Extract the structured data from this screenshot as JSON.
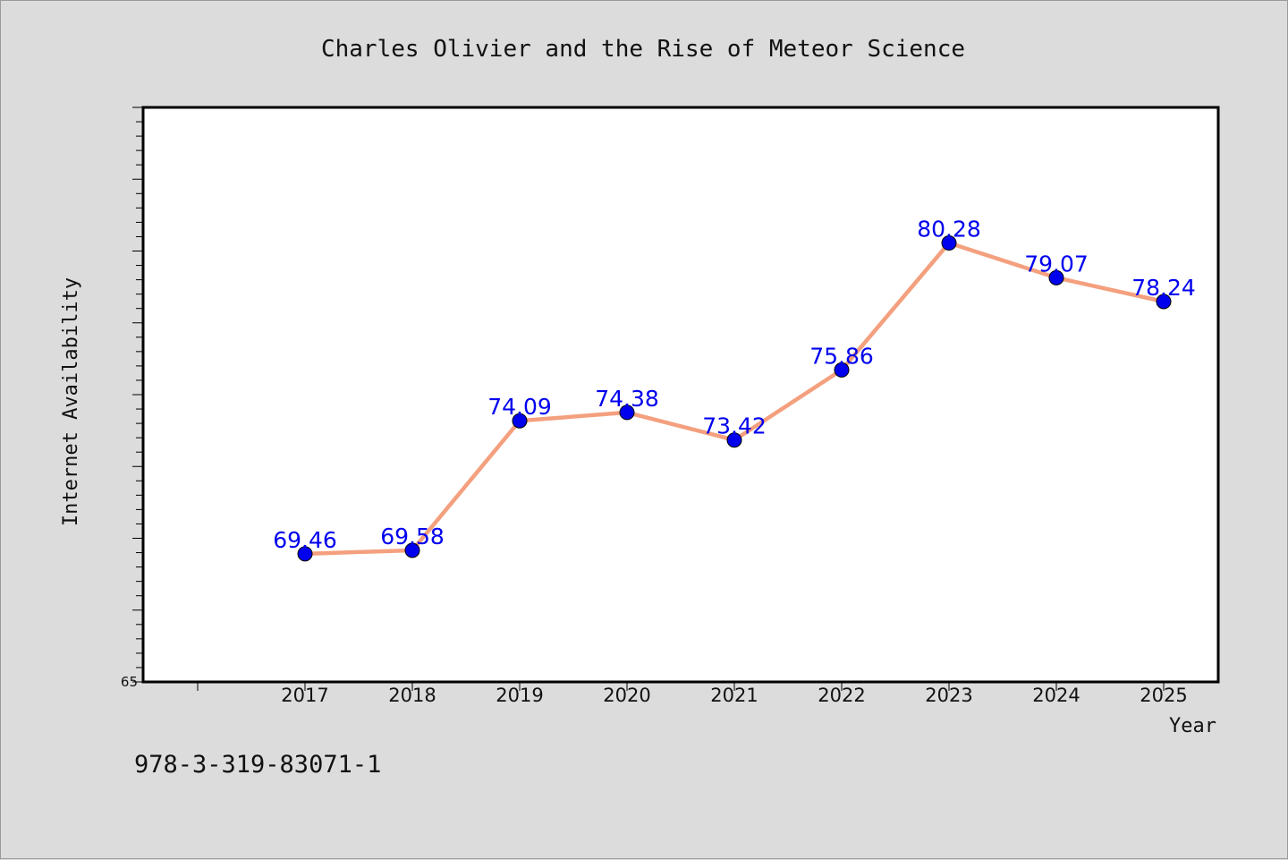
{
  "chart_data": {
    "type": "line",
    "title": "Charles Olivier and the Rise of Meteor Science",
    "xlabel": "Year",
    "ylabel": "Internet Availability",
    "categories": [
      "2017",
      "2018",
      "2019",
      "2020",
      "2021",
      "2022",
      "2023",
      "2024",
      "2025"
    ],
    "series": [
      {
        "values": [
          69.46,
          69.58,
          74.09,
          74.38,
          73.42,
          75.86,
          80.28,
          79.07,
          78.24
        ],
        "line_color": "#f4a07e",
        "marker_color": "#0000ee",
        "label_color": "#0000ee"
      }
    ],
    "ylim": [
      65,
      85
    ],
    "y_tick_labels_shown": [
      "65"
    ],
    "grid": false,
    "legend": "none",
    "data_labels": true
  },
  "footer": {
    "isbn": "978-3-319-83071-1"
  }
}
